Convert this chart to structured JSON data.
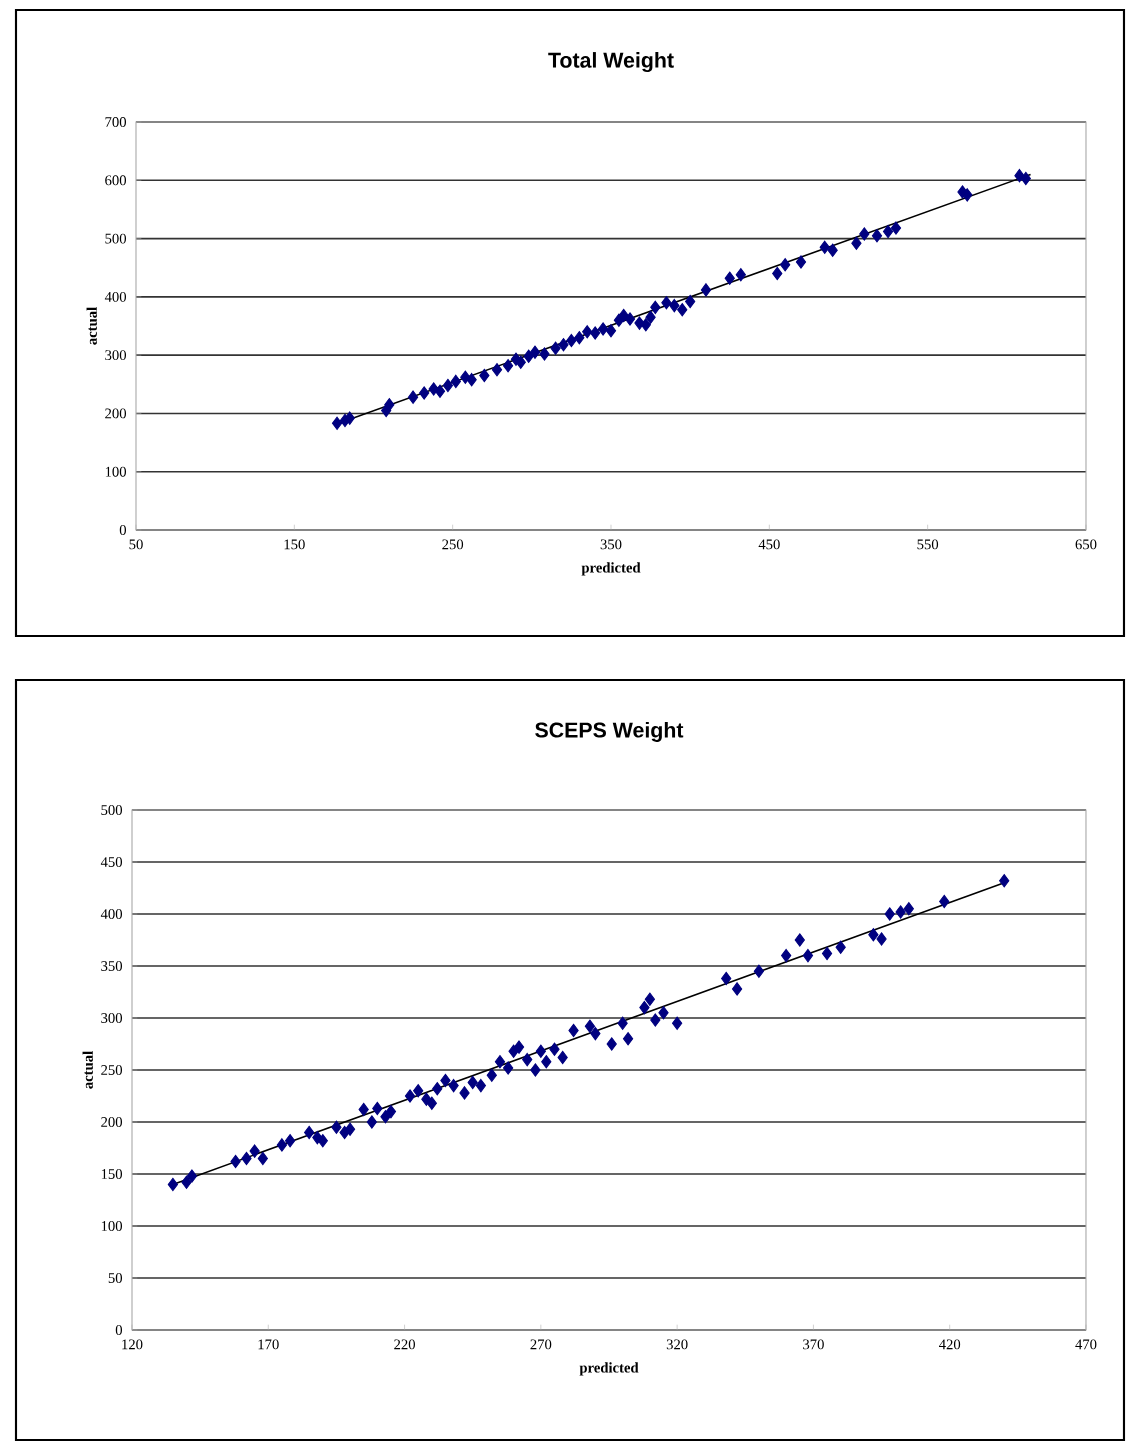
{
  "chart_data": [
    {
      "type": "scatter",
      "title": "Total Weight",
      "xlabel": "predicted",
      "ylabel": "actual",
      "xlim": [
        50,
        650
      ],
      "ylim": [
        0,
        700
      ],
      "xticks": [
        50,
        150,
        250,
        350,
        450,
        550,
        650
      ],
      "yticks": [
        0,
        100,
        200,
        300,
        400,
        500,
        600,
        700
      ],
      "grid": "y",
      "marker": "diamond",
      "series": [
        {
          "color": "#000080",
          "x": [
            177,
            182,
            185,
            208,
            210,
            225,
            232,
            238,
            242,
            247,
            252,
            258,
            262,
            270,
            278,
            285,
            290,
            293,
            298,
            302,
            308,
            315,
            320,
            325,
            330,
            335,
            340,
            345,
            350,
            355,
            358,
            362,
            368,
            372,
            375,
            378,
            385,
            390,
            395,
            400,
            410,
            425,
            432,
            455,
            460,
            470,
            485,
            490,
            505,
            510,
            518,
            525,
            530,
            572,
            575,
            608,
            612
          ],
          "values": [
            183,
            188,
            192,
            205,
            215,
            228,
            235,
            242,
            238,
            248,
            255,
            262,
            258,
            265,
            275,
            282,
            293,
            288,
            298,
            305,
            302,
            312,
            318,
            325,
            330,
            340,
            338,
            345,
            342,
            360,
            368,
            362,
            355,
            352,
            365,
            382,
            390,
            385,
            378,
            392,
            412,
            432,
            438,
            440,
            455,
            460,
            485,
            480,
            492,
            508,
            505,
            512,
            518,
            580,
            575,
            608,
            603
          ]
        },
        {
          "type": "line",
          "marker": "none",
          "color": "#000000",
          "x": [
            175,
            615
          ],
          "values": [
            180,
            610
          ]
        }
      ]
    },
    {
      "type": "scatter",
      "title": "SCEPS Weight",
      "xlabel": "predicted",
      "ylabel": "actual",
      "xlim": [
        120,
        470
      ],
      "ylim": [
        0,
        500
      ],
      "xticks": [
        120,
        170,
        220,
        270,
        320,
        370,
        420,
        470
      ],
      "yticks": [
        0,
        50,
        100,
        150,
        200,
        250,
        300,
        350,
        400,
        450,
        500
      ],
      "grid": "y",
      "marker": "diamond",
      "series": [
        {
          "color": "#000080",
          "x": [
            135,
            140,
            142,
            158,
            162,
            165,
            168,
            175,
            178,
            185,
            188,
            190,
            195,
            198,
            200,
            205,
            208,
            210,
            213,
            215,
            222,
            225,
            228,
            230,
            232,
            235,
            238,
            242,
            245,
            248,
            252,
            255,
            258,
            260,
            262,
            265,
            268,
            270,
            272,
            275,
            278,
            282,
            288,
            290,
            296,
            300,
            302,
            308,
            310,
            312,
            315,
            320,
            338,
            342,
            350,
            360,
            365,
            368,
            375,
            380,
            392,
            395,
            398,
            402,
            405,
            418,
            440
          ],
          "values": [
            140,
            142,
            148,
            162,
            165,
            172,
            165,
            178,
            182,
            190,
            185,
            182,
            195,
            190,
            193,
            212,
            200,
            213,
            205,
            210,
            225,
            230,
            222,
            218,
            232,
            240,
            235,
            228,
            238,
            235,
            245,
            258,
            252,
            268,
            272,
            260,
            250,
            268,
            258,
            270,
            262,
            288,
            292,
            285,
            275,
            295,
            280,
            310,
            318,
            298,
            305,
            295,
            338,
            328,
            345,
            360,
            375,
            360,
            362,
            368,
            380,
            376,
            400,
            402,
            405,
            412,
            432
          ]
        },
        {
          "type": "line",
          "marker": "none",
          "color": "#000000",
          "x": [
            135,
            440
          ],
          "values": [
            140,
            430
          ]
        }
      ]
    }
  ]
}
